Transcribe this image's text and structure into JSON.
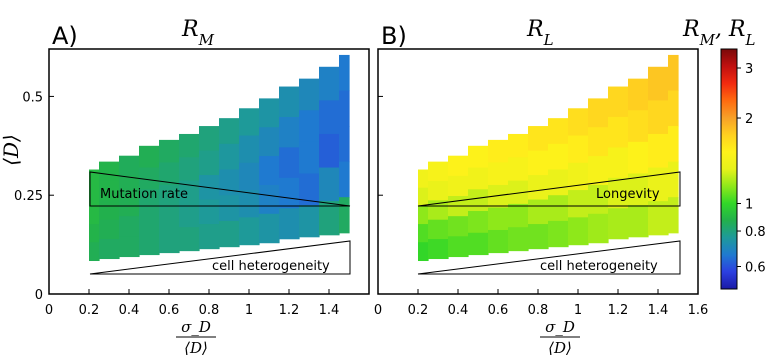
{
  "figure": {
    "colorbar": {
      "title": "R_M, R_L",
      "ticks": [
        "3",
        "2",
        "1",
        "0.8",
        "0.6"
      ],
      "tick_values": [
        3,
        2,
        1,
        0.8,
        0.6
      ],
      "range": [
        0.5,
        3.5
      ],
      "scale": "log",
      "colormap": [
        "#1a1aa6",
        "#2c3fe0",
        "#1f7ad0",
        "#1e9a9a",
        "#22b04c",
        "#32d728",
        "#8fe81a",
        "#e7f21a",
        "#fff21a",
        "#ffd020",
        "#f7a028",
        "#ff6a10",
        "#f22a10",
        "#c01010",
        "#7a0a0a"
      ]
    }
  },
  "chart_data": [
    {
      "type": "heatmap",
      "panel_label": "A)",
      "title": "R_M",
      "xlabel_num": "σ_D",
      "xlabel_den": "⟨D⟩",
      "ylabel": "⟨D⟩",
      "xlim": [
        0,
        1.6
      ],
      "ylim": [
        0,
        0.62
      ],
      "x_ticks": [
        "0",
        "0.2",
        "0.4",
        "0.6",
        "0.8",
        "1",
        "1.2",
        "1.4"
      ],
      "x_tick_values": [
        0,
        0.2,
        0.4,
        0.6,
        0.8,
        1.0,
        1.2,
        1.4
      ],
      "y_ticks": [
        "0",
        "0.25",
        "0.5"
      ],
      "y_tick_values": [
        0,
        0.25,
        0.5
      ],
      "x_centers": [
        0.2,
        0.3,
        0.4,
        0.5,
        0.6,
        0.7,
        0.8,
        0.9,
        1.0,
        1.1,
        1.2,
        1.3,
        1.4,
        1.5
      ],
      "y_bottom": [
        0.085,
        0.09,
        0.095,
        0.1,
        0.105,
        0.11,
        0.115,
        0.12,
        0.125,
        0.13,
        0.14,
        0.145,
        0.15,
        0.155
      ],
      "y_top": [
        0.315,
        0.335,
        0.35,
        0.375,
        0.39,
        0.405,
        0.425,
        0.445,
        0.47,
        0.495,
        0.525,
        0.545,
        0.575,
        0.605
      ],
      "rows": 5,
      "values": [
        [
          0.9,
          0.88,
          0.85,
          0.86,
          0.84,
          0.82,
          0.8,
          0.78,
          0.76,
          0.74,
          0.72,
          0.7,
          0.68,
          0.66
        ],
        [
          0.9,
          0.88,
          0.86,
          0.84,
          0.82,
          0.8,
          0.78,
          0.75,
          0.72,
          0.7,
          0.68,
          0.66,
          0.64,
          0.64
        ],
        [
          0.9,
          0.87,
          0.86,
          0.82,
          0.8,
          0.78,
          0.74,
          0.72,
          0.7,
          0.66,
          0.64,
          0.66,
          0.62,
          0.64
        ],
        [
          0.88,
          0.86,
          0.84,
          0.82,
          0.8,
          0.78,
          0.76,
          0.74,
          0.72,
          0.68,
          0.66,
          0.64,
          0.7,
          0.66
        ],
        [
          0.86,
          0.84,
          0.84,
          0.82,
          0.8,
          0.8,
          0.78,
          0.78,
          0.76,
          0.74,
          0.72,
          0.74,
          0.8,
          0.84
        ]
      ],
      "annotations": [
        {
          "text": "Mutation rate",
          "shape": "wedge-narrowing-right"
        },
        {
          "text": "cell heterogeneity",
          "shape": "wedge-widening-right"
        }
      ]
    },
    {
      "type": "heatmap",
      "panel_label": "B)",
      "title": "R_L",
      "xlabel_num": "σ_D",
      "xlabel_den": "⟨D⟩",
      "xlim": [
        0,
        1.6
      ],
      "ylim": [
        0,
        0.62
      ],
      "x_ticks": [
        "0",
        "0.2",
        "0.4",
        "0.6",
        "0.8",
        "1",
        "1.2",
        "1.4",
        "1.6"
      ],
      "x_tick_values": [
        0,
        0.2,
        0.4,
        0.6,
        0.8,
        1.0,
        1.2,
        1.4,
        1.6
      ],
      "x_centers": [
        0.2,
        0.3,
        0.4,
        0.5,
        0.6,
        0.7,
        0.8,
        0.9,
        1.0,
        1.1,
        1.2,
        1.3,
        1.4,
        1.5
      ],
      "y_bottom": [
        0.085,
        0.09,
        0.095,
        0.1,
        0.105,
        0.11,
        0.115,
        0.12,
        0.125,
        0.13,
        0.14,
        0.145,
        0.15,
        0.155
      ],
      "y_top": [
        0.315,
        0.335,
        0.35,
        0.375,
        0.39,
        0.405,
        0.425,
        0.445,
        0.47,
        0.495,
        0.525,
        0.545,
        0.575,
        0.605
      ],
      "rows": 5,
      "values": [
        [
          1.4,
          1.45,
          1.5,
          1.5,
          1.55,
          1.55,
          1.6,
          1.6,
          1.65,
          1.7,
          1.7,
          1.75,
          1.8,
          1.8
        ],
        [
          1.3,
          1.35,
          1.4,
          1.4,
          1.45,
          1.45,
          1.5,
          1.5,
          1.55,
          1.6,
          1.6,
          1.65,
          1.7,
          1.7
        ],
        [
          1.15,
          1.2,
          1.25,
          1.25,
          1.3,
          1.3,
          1.35,
          1.35,
          1.4,
          1.45,
          1.45,
          1.5,
          1.55,
          1.55
        ],
        [
          1.05,
          1.08,
          1.1,
          1.12,
          1.15,
          1.15,
          1.2,
          1.2,
          1.25,
          1.25,
          1.3,
          1.3,
          1.35,
          1.35
        ],
        [
          1.0,
          1.02,
          1.05,
          1.05,
          1.08,
          1.1,
          1.1,
          1.12,
          1.15,
          1.18,
          1.2,
          1.2,
          1.25,
          1.25
        ]
      ],
      "annotations": [
        {
          "text": "Longevity",
          "shape": "wedge-widening-right"
        },
        {
          "text": "cell heterogeneity",
          "shape": "wedge-widening-right"
        }
      ]
    }
  ]
}
